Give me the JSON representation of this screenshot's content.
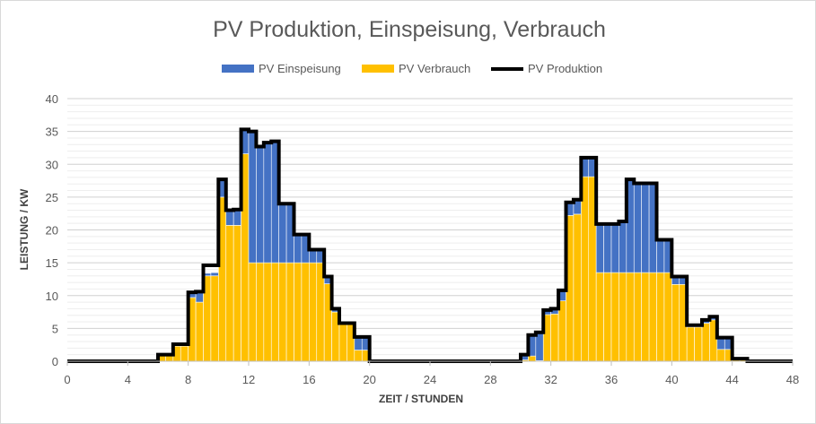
{
  "chart_data": {
    "type": "bar",
    "title": "PV Produktion, Einspeisung, Verbrauch",
    "xlabel": "ZEIT / STUNDEN",
    "ylabel": "LEISTUNG / KW",
    "xlim": [
      0,
      48
    ],
    "ylim": [
      0,
      40
    ],
    "x_ticks": [
      "0",
      "4",
      "8",
      "12",
      "16",
      "20",
      "24",
      "28",
      "32",
      "36",
      "40",
      "44",
      "48"
    ],
    "y_ticks": [
      "0",
      "5",
      "10",
      "15",
      "20",
      "25",
      "30",
      "35",
      "40"
    ],
    "bin_width_hours": 0.5,
    "stacked": true,
    "grid": true,
    "legend_position": "top",
    "series": [
      {
        "name": "PV Einspeisung",
        "kind": "stacked-bar",
        "color": "#4472C4",
        "values": [
          0,
          0,
          0,
          0,
          0,
          0,
          0,
          0,
          0,
          0,
          0,
          0,
          0.2,
          0.2,
          0.3,
          0.3,
          0.8,
          1.6,
          0.4,
          0.5,
          2.7,
          2.3,
          2.4,
          3.7,
          20.0,
          17.7,
          18.3,
          18.5,
          9.0,
          9.0,
          4.3,
          4.3,
          2.0,
          2.0,
          1.1,
          0.5,
          0.1,
          0.1,
          2.0,
          2.0,
          0,
          0,
          0,
          0,
          0,
          0,
          0,
          0,
          0,
          0,
          0,
          0,
          0,
          0,
          0,
          0,
          0,
          0,
          0,
          0,
          0.8,
          3.2,
          4.3,
          0.7,
          0.8,
          1.6,
          2.0,
          2.2,
          2.9,
          2.9,
          7.4,
          7.4,
          7.4,
          7.8,
          14.2,
          13.6,
          13.6,
          13.6,
          5.0,
          5.0,
          1.2,
          1.2,
          0.3,
          0.3,
          0.5,
          0.5,
          1.8,
          1.8,
          0.2,
          0.2,
          0,
          0,
          0,
          0,
          0,
          0
        ]
      },
      {
        "name": "PV Verbrauch",
        "kind": "stacked-bar",
        "color": "#FFC000",
        "values": [
          0,
          0,
          0,
          0,
          0,
          0,
          0,
          0,
          0,
          0,
          0,
          0,
          0.8,
          0.8,
          2.3,
          2.3,
          9.7,
          9.0,
          13.0,
          13.0,
          25.0,
          20.7,
          20.7,
          31.6,
          15.0,
          15.0,
          15.0,
          15.0,
          15.0,
          15.0,
          15.0,
          15.0,
          15.0,
          15.0,
          11.8,
          7.5,
          5.7,
          5.7,
          1.7,
          1.7,
          0,
          0,
          0,
          0,
          0,
          0,
          0,
          0,
          0,
          0,
          0,
          0,
          0,
          0,
          0,
          0,
          0,
          0,
          0,
          0,
          0.2,
          0.8,
          0.1,
          7.1,
          7.2,
          9.2,
          22.2,
          22.4,
          28.1,
          28.1,
          13.5,
          13.5,
          13.5,
          13.5,
          13.5,
          13.5,
          13.5,
          13.5,
          13.5,
          13.5,
          11.7,
          11.7,
          5.2,
          5.2,
          5.8,
          6.3,
          1.8,
          1.8,
          0.2,
          0.2,
          0,
          0,
          0,
          0,
          0,
          0
        ]
      },
      {
        "name": "PV Produktion",
        "kind": "step-line",
        "color": "#000000",
        "values": [
          0,
          0,
          0,
          0,
          0,
          0,
          0,
          0,
          0,
          0,
          0,
          0,
          1.0,
          1.0,
          2.6,
          2.6,
          10.5,
          10.6,
          14.6,
          14.6,
          27.7,
          23.0,
          23.1,
          35.3,
          35.0,
          32.7,
          33.3,
          33.5,
          24.0,
          24.0,
          19.3,
          19.3,
          17.0,
          17.0,
          12.9,
          8.0,
          5.8,
          5.8,
          3.7,
          3.7,
          0,
          0,
          0,
          0,
          0,
          0,
          0,
          0,
          0,
          0,
          0,
          0,
          0,
          0,
          0,
          0,
          0,
          0,
          0,
          0,
          1.0,
          4.0,
          4.4,
          7.8,
          8.0,
          10.8,
          24.2,
          24.6,
          31.0,
          31.0,
          20.9,
          20.9,
          20.9,
          21.3,
          27.7,
          27.1,
          27.1,
          27.1,
          18.5,
          18.5,
          12.9,
          12.9,
          5.5,
          5.5,
          6.3,
          6.8,
          3.6,
          3.6,
          0.4,
          0.4,
          0,
          0,
          0,
          0,
          0,
          0
        ]
      }
    ]
  }
}
